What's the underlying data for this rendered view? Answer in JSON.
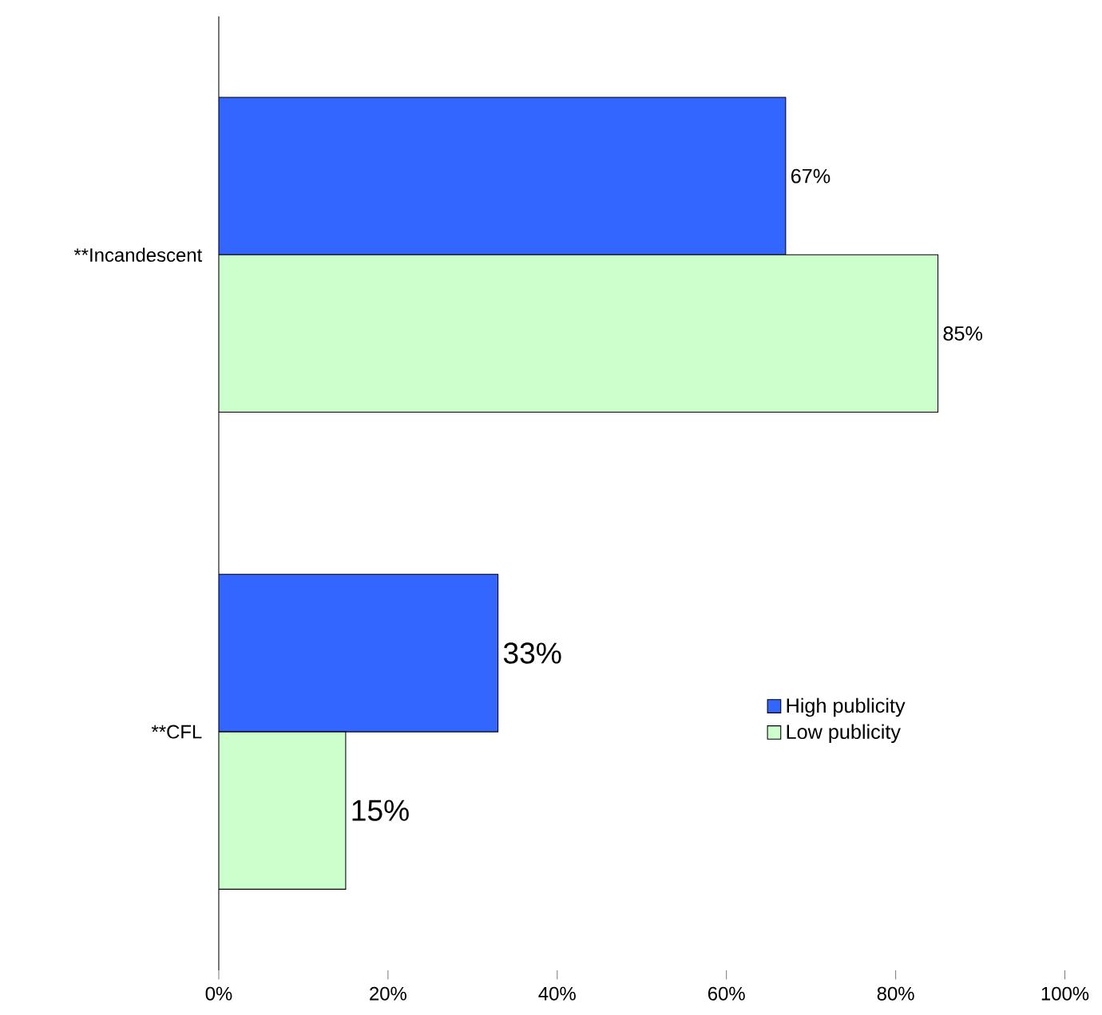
{
  "chart_data": {
    "type": "bar",
    "orientation": "horizontal",
    "categories": [
      "**Incandescent",
      "**CFL"
    ],
    "series": [
      {
        "name": "High publicity",
        "color": "#3366ff",
        "values": [
          67,
          33
        ],
        "value_labels": [
          "67%",
          "33%"
        ]
      },
      {
        "name": "Low publicity",
        "color": "#ccffcc",
        "values": [
          85,
          15
        ],
        "value_labels": [
          "85%",
          "15%"
        ]
      }
    ],
    "xlim": [
      0,
      100
    ],
    "xticks": [
      {
        "value": 0,
        "label": "0%"
      },
      {
        "value": 20,
        "label": "20%"
      },
      {
        "value": 40,
        "label": "40%"
      },
      {
        "value": 60,
        "label": "60%"
      },
      {
        "value": 80,
        "label": "80%"
      },
      {
        "value": 100,
        "label": "100%"
      }
    ],
    "legend": "bottom right",
    "grid": false
  }
}
